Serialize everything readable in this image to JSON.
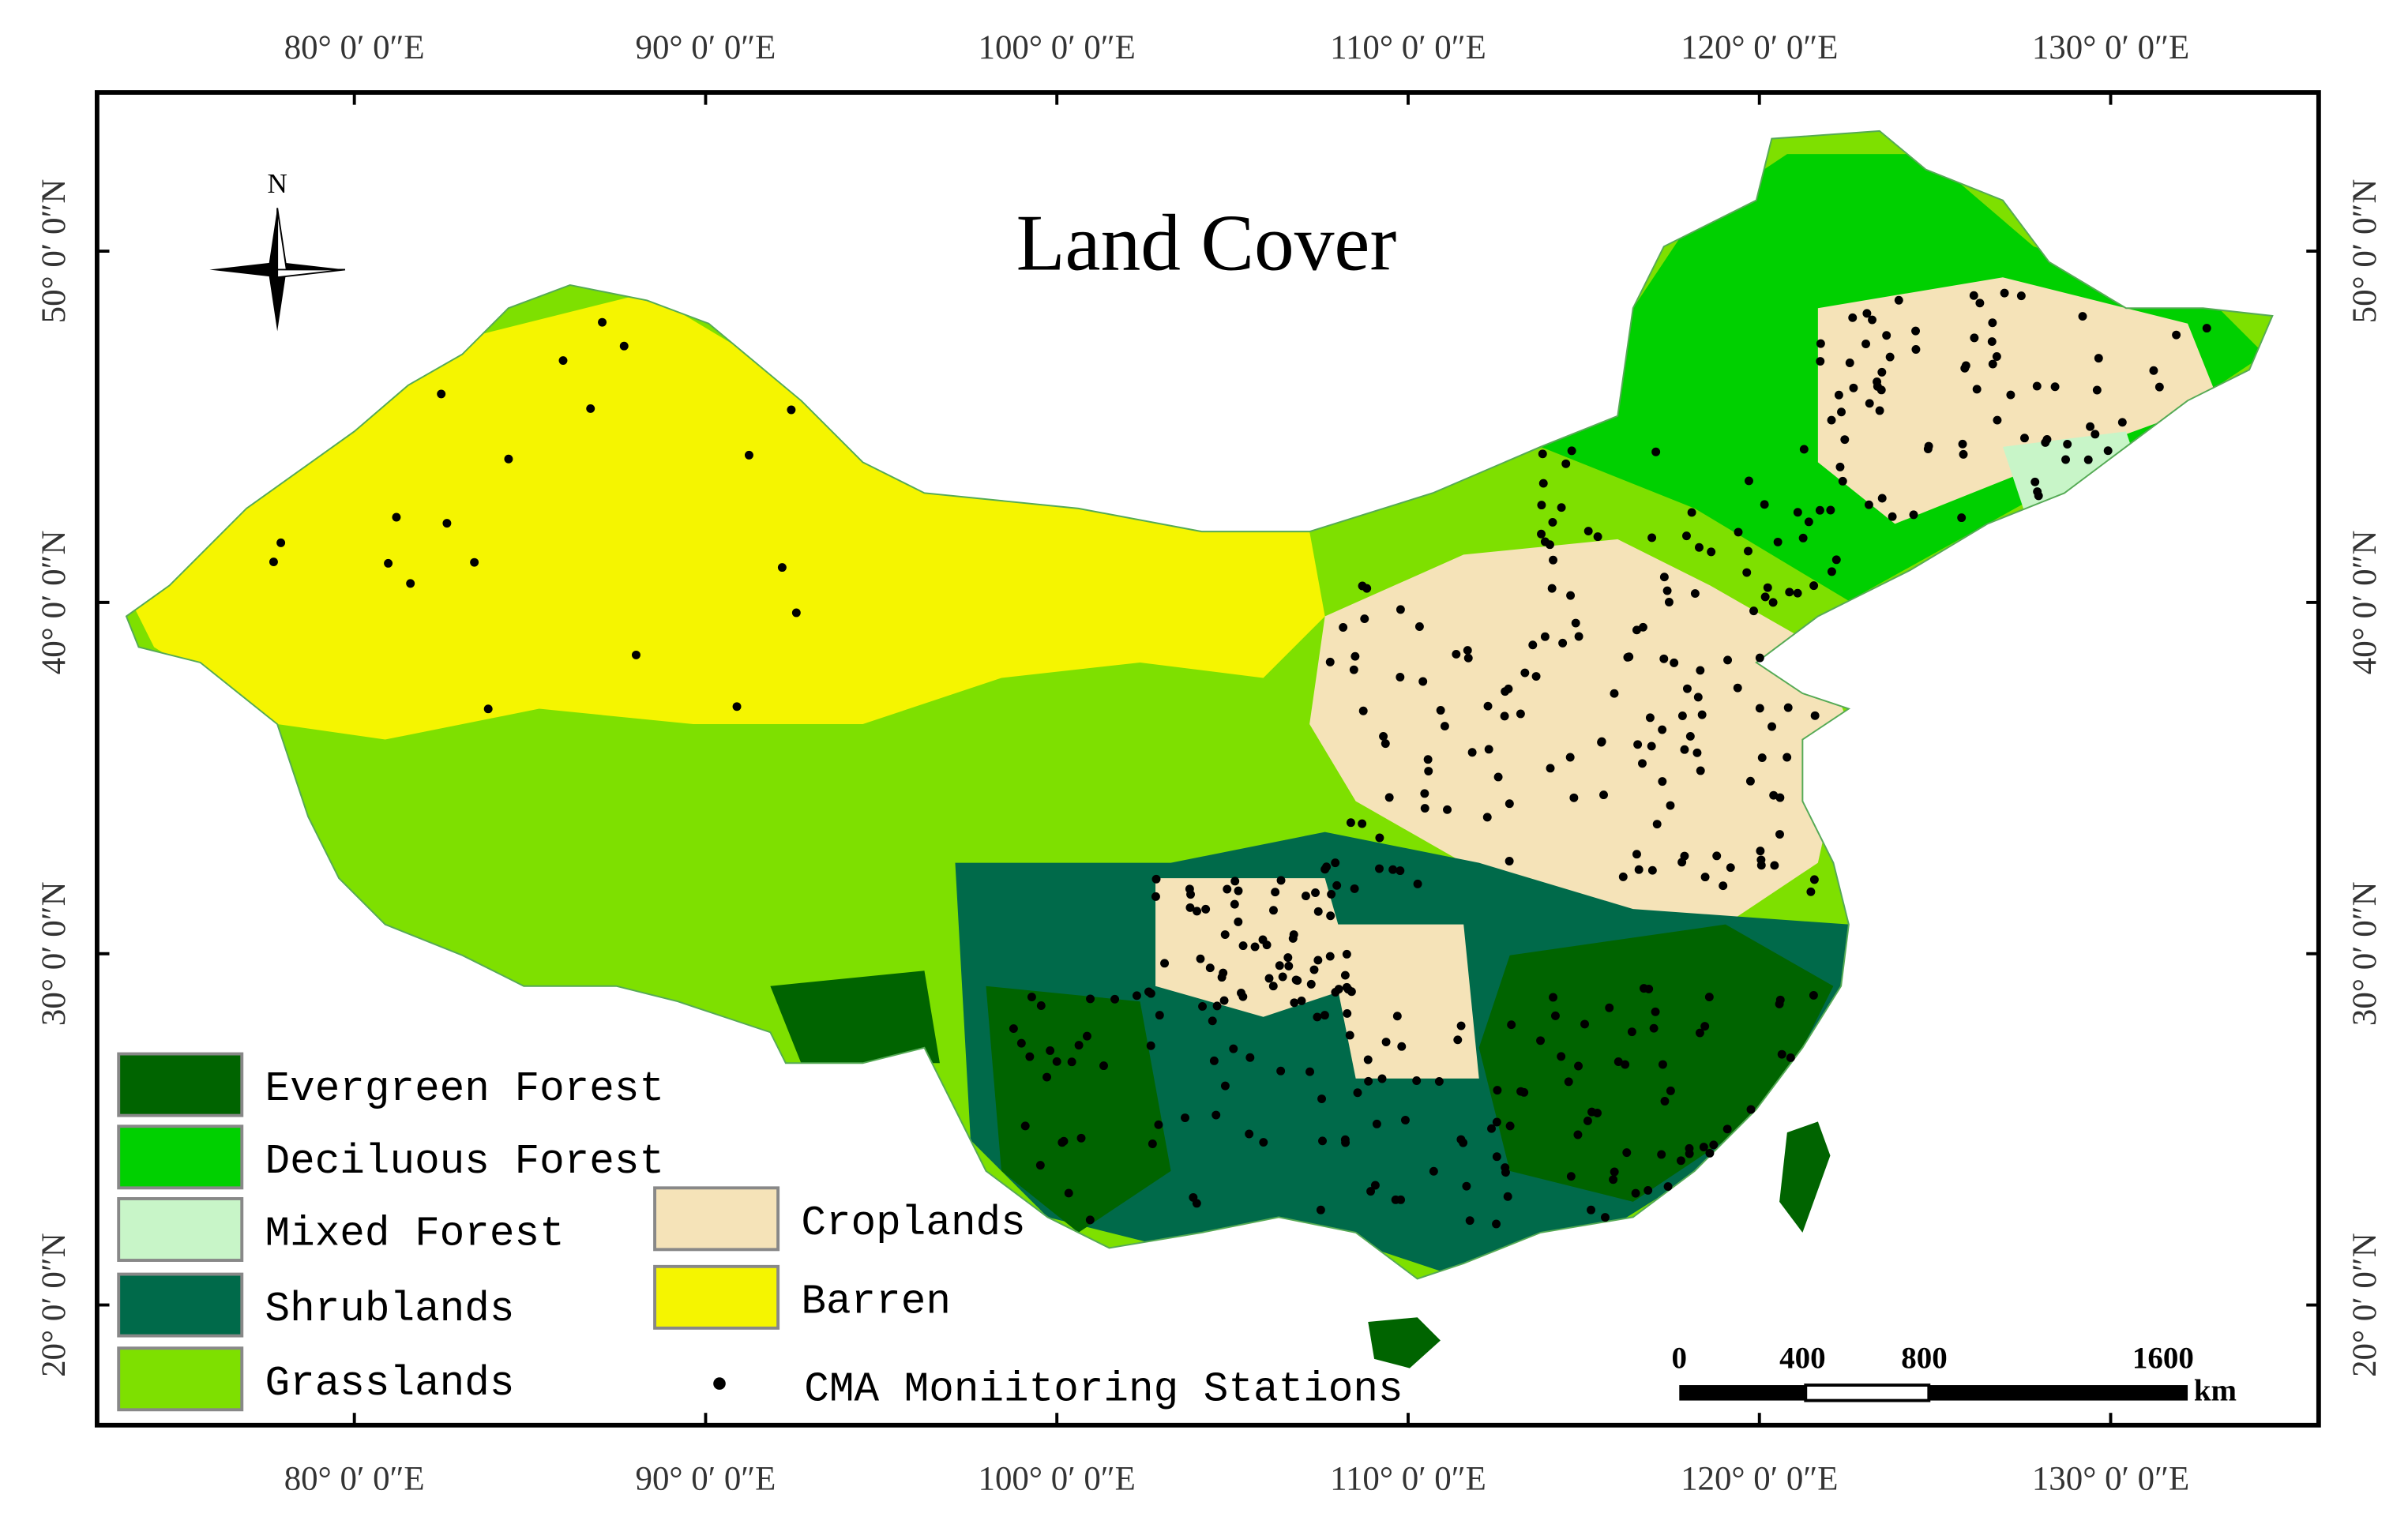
{
  "title": "Land Cover",
  "north_label": "N",
  "longitude_labels": [
    "80° 0′ 0″E",
    "90° 0′ 0″E",
    "100° 0′ 0″E",
    "110° 0′ 0″E",
    "120° 0′ 0″E",
    "130° 0′ 0″E"
  ],
  "latitude_labels": [
    "50° 0′ 0″N",
    "40° 0′ 0″N",
    "30° 0′ 0″N",
    "20° 0′ 0″N"
  ],
  "legend": [
    {
      "label": "Evergreen Forest",
      "color": "#006400"
    },
    {
      "label": "Deciluous Forest",
      "color": "#00d000"
    },
    {
      "label": "Mixed Forest",
      "color": "#c8f5c8"
    },
    {
      "label": "Shrublands",
      "color": "#006a4a"
    },
    {
      "label": "Grasslands",
      "color": "#7ee000"
    },
    {
      "label": "Croplands",
      "color": "#f5e3b8"
    },
    {
      "label": "Barren",
      "color": "#f5f500"
    }
  ],
  "stations_label": "CMA Moniitoring Stations",
  "scale_bar": {
    "labels": [
      "0",
      "400",
      "800",
      "1600"
    ],
    "unit": "km"
  }
}
